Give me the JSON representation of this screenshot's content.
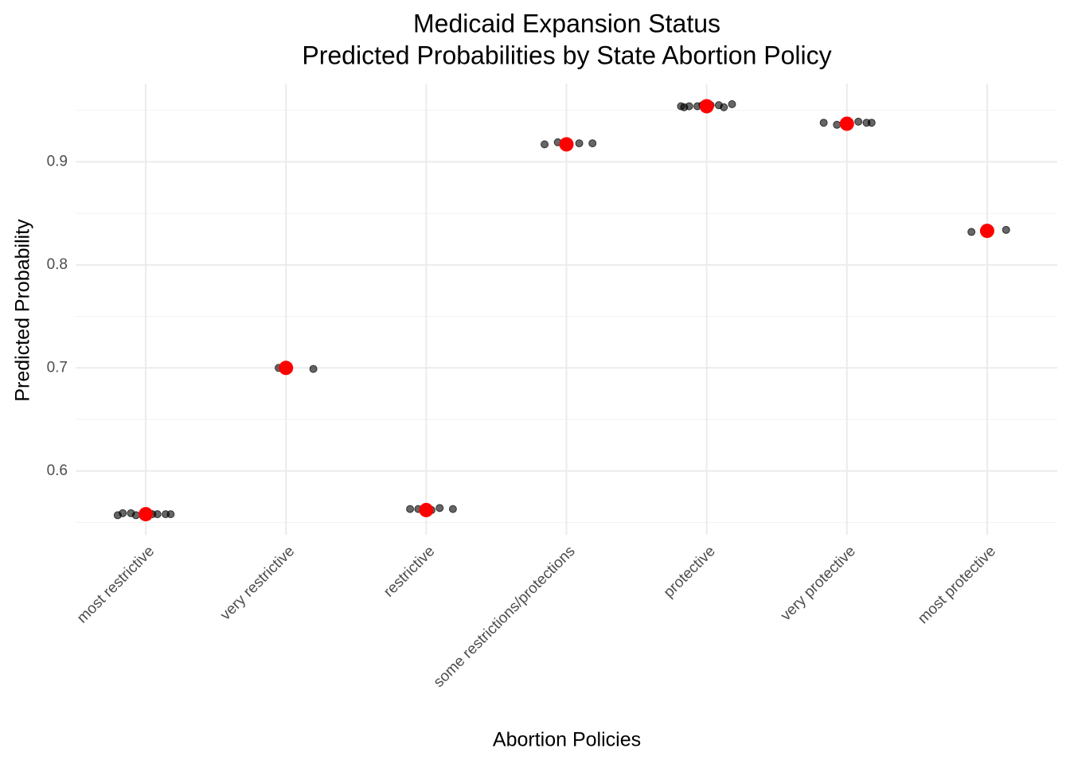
{
  "chart_data": {
    "type": "jitter",
    "title": "Medicaid Expansion Status",
    "subtitle": "Predicted Probabilities by State Abortion Policy",
    "x_label": "Abortion Policies",
    "y_label": "Predicted Probability",
    "categories": [
      "most restrictive",
      "very restrictive",
      "restrictive",
      "some restrictions/protections",
      "protective",
      "very protective",
      "most protective"
    ],
    "means": [
      0.558,
      0.7,
      0.562,
      0.917,
      0.954,
      0.937,
      0.833
    ],
    "mean_color": "#ff0000",
    "points": [
      [
        0.557,
        0.558,
        0.559,
        0.558,
        0.557,
        0.559,
        0.558,
        0.557,
        0.558,
        0.559
      ],
      [
        0.7,
        0.699
      ],
      [
        0.564,
        0.563,
        0.563,
        0.562,
        0.563
      ],
      [
        0.917,
        0.918,
        0.919,
        0.918
      ],
      [
        0.954,
        0.953,
        0.955,
        0.954,
        0.956,
        0.955,
        0.954,
        0.953,
        0.955,
        0.954
      ],
      [
        0.938,
        0.937,
        0.938,
        0.939,
        0.936,
        0.938
      ],
      [
        0.832,
        0.834
      ]
    ],
    "point_color": "#000000",
    "ylim": [
      0.538,
      0.976
    ],
    "yticks": [
      0.6,
      0.7,
      0.8,
      0.9
    ],
    "yminor": [
      0.55,
      0.65,
      0.75,
      0.85,
      0.95
    ],
    "grid": true
  }
}
